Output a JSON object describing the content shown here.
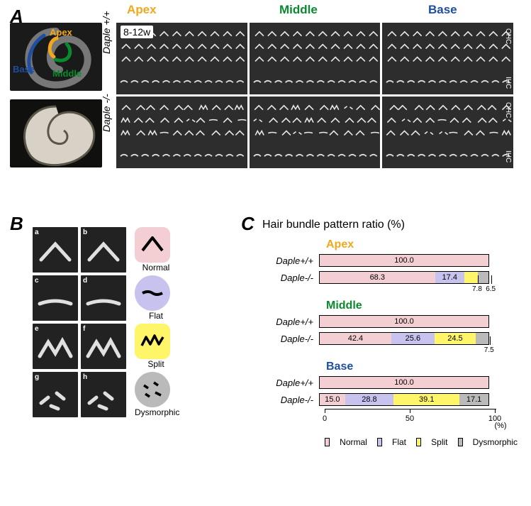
{
  "panelA": {
    "label": "A",
    "regions": {
      "apex": {
        "text": "Apex",
        "color": "#f2a81d"
      },
      "middle": {
        "text": "Middle",
        "color": "#0a8a2e"
      },
      "base": {
        "text": "Base",
        "color": "#1f4fa0"
      }
    },
    "cochlea_bg": "#0f0f0f",
    "time_label": "8-12w",
    "row_labels": {
      "top": "Daple +/+",
      "bottom": "Daple -/-"
    },
    "side_labels": {
      "ohc": "OHC",
      "ihc": "IHC"
    }
  },
  "panelB": {
    "label": "B",
    "tiny_labels": [
      "a",
      "b",
      "c",
      "d",
      "e",
      "f",
      "g",
      "h"
    ],
    "categories": [
      {
        "name": "Normal",
        "color": "#f3cfd3",
        "shape": "chevron"
      },
      {
        "name": "Flat",
        "color": "#c7c2ee",
        "shape": "flat"
      },
      {
        "name": "Split",
        "color": "#fef568",
        "shape": "split"
      },
      {
        "name": "Dysmorphic",
        "color": "#b9bab9",
        "shape": "dysmorphic"
      }
    ]
  },
  "panelC": {
    "label": "C",
    "title": "Hair bundle pattern ratio (%)",
    "axis": {
      "min": 0,
      "max": 100,
      "ticks": [
        0,
        50,
        100
      ],
      "unit": "(%)"
    },
    "colors": {
      "Normal": "#f3cfd3",
      "Flat": "#c7c2ee",
      "Split": "#fef568",
      "Dysmorphic": "#b9bab9"
    },
    "blocks": [
      {
        "region": "Apex",
        "region_color": "#f2a81d",
        "rows": [
          {
            "label": "Daple+/+",
            "segs": [
              {
                "cat": "Normal",
                "v": 100.0
              }
            ]
          },
          {
            "label": "Daple-/-",
            "segs": [
              {
                "cat": "Normal",
                "v": 68.3
              },
              {
                "cat": "Flat",
                "v": 17.4
              },
              {
                "cat": "Split",
                "v": 7.8
              },
              {
                "cat": "Dysmorphic",
                "v": 6.5
              }
            ],
            "callouts": [
              {
                "v": 7.8,
                "at": 90
              },
              {
                "v": 6.5,
                "at": 98
              }
            ]
          }
        ]
      },
      {
        "region": "Middle",
        "region_color": "#0a8a2e",
        "rows": [
          {
            "label": "Daple+/+",
            "segs": [
              {
                "cat": "Normal",
                "v": 100.0
              }
            ]
          },
          {
            "label": "Daple-/-",
            "segs": [
              {
                "cat": "Normal",
                "v": 42.4
              },
              {
                "cat": "Flat",
                "v": 25.6
              },
              {
                "cat": "Split",
                "v": 24.5
              },
              {
                "cat": "Dysmorphic",
                "v": 7.5
              }
            ],
            "callouts": [
              {
                "v": 7.5,
                "at": 97
              }
            ]
          }
        ]
      },
      {
        "region": "Base",
        "region_color": "#1f4fa0",
        "rows": [
          {
            "label": "Daple+/+",
            "segs": [
              {
                "cat": "Normal",
                "v": 100.0
              }
            ]
          },
          {
            "label": "Daple-/-",
            "segs": [
              {
                "cat": "Normal",
                "v": 15.0
              },
              {
                "cat": "Flat",
                "v": 28.8
              },
              {
                "cat": "Split",
                "v": 39.1
              },
              {
                "cat": "Dysmorphic",
                "v": 17.1
              }
            ]
          }
        ]
      }
    ],
    "legend": [
      "Normal",
      "Flat",
      "Split",
      "Dysmorphic"
    ]
  }
}
